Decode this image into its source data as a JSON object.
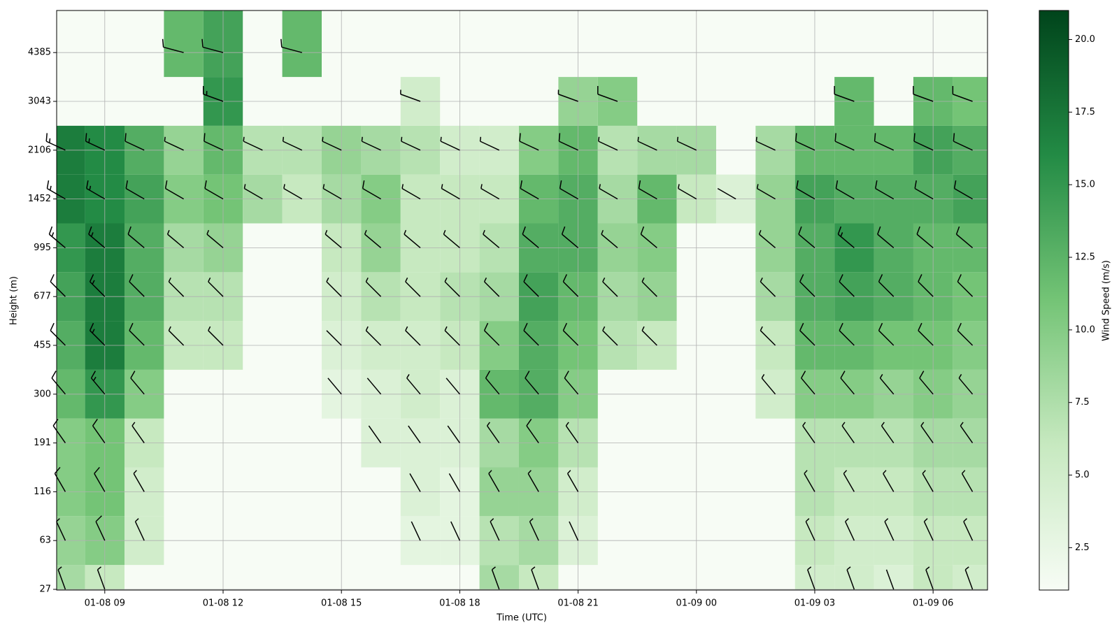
{
  "chart_data": {
    "type": "heatmap-barbs",
    "x_label": "Time (UTC)",
    "y_label": "Height (m)",
    "colorbar_label": "Wind Speed (m/s)",
    "cmap": [
      "#f7fcf5",
      "#c7e9c0",
      "#74c476",
      "#238b45",
      "#00441b"
    ],
    "barb_color": "#000000",
    "grid": true,
    "x": [
      8,
      9,
      10,
      11,
      12,
      13,
      14,
      15,
      16,
      17,
      18,
      19,
      20,
      21,
      22,
      23,
      24,
      25,
      26,
      27,
      28,
      29,
      30,
      31
    ],
    "xlim": [
      7.78,
      31.38
    ],
    "xticks": [
      {
        "value": 9,
        "label": "01-08 09"
      },
      {
        "value": 12,
        "label": "01-08 12"
      },
      {
        "value": 15,
        "label": "01-08 15"
      },
      {
        "value": 18,
        "label": "01-08 18"
      },
      {
        "value": 21,
        "label": "01-08 21"
      },
      {
        "value": 24,
        "label": "01-09 00"
      },
      {
        "value": 27,
        "label": "01-09 03"
      },
      {
        "value": 30,
        "label": "01-09 06"
      }
    ],
    "y_levels": [
      27,
      63,
      116,
      191,
      300,
      455,
      677,
      995,
      1452,
      2106,
      3043,
      4385
    ],
    "directions": [
      340,
      335,
      330,
      325,
      320,
      315,
      315,
      310,
      300,
      295,
      290,
      285
    ],
    "values": [
      [
        8,
        6,
        null,
        null,
        null,
        null,
        null,
        null,
        null,
        null,
        null,
        8,
        6,
        null,
        null,
        null,
        null,
        null,
        null,
        5,
        5,
        4,
        6,
        5
      ],
      [
        9,
        10,
        5,
        null,
        null,
        null,
        null,
        null,
        null,
        3,
        3,
        7,
        8,
        4,
        null,
        null,
        null,
        null,
        null,
        6,
        5,
        5,
        6,
        6
      ],
      [
        10,
        11,
        5,
        null,
        null,
        null,
        null,
        null,
        null,
        4,
        3,
        9,
        9,
        5,
        null,
        null,
        null,
        null,
        null,
        7,
        6,
        6,
        7,
        7
      ],
      [
        10,
        11,
        6,
        null,
        null,
        null,
        null,
        null,
        4,
        4,
        4,
        8,
        10,
        7,
        null,
        null,
        null,
        null,
        null,
        7,
        7,
        7,
        8,
        8
      ],
      [
        12,
        15,
        10,
        null,
        null,
        null,
        null,
        3,
        4,
        5,
        4,
        12,
        13,
        10,
        null,
        null,
        null,
        null,
        5,
        10,
        10,
        9,
        10,
        9
      ],
      [
        13,
        17,
        12,
        6,
        6,
        null,
        null,
        4,
        5,
        5,
        6,
        10,
        13,
        11,
        7,
        6,
        null,
        null,
        6,
        12,
        12,
        11,
        11,
        10
      ],
      [
        14,
        17,
        13,
        7,
        7,
        null,
        null,
        5,
        7,
        6,
        7,
        8,
        14,
        12,
        8,
        9,
        null,
        null,
        8,
        13,
        14,
        13,
        12,
        11
      ],
      [
        15,
        17,
        13,
        8,
        9,
        null,
        null,
        6,
        9,
        6,
        6,
        7,
        13,
        13,
        9,
        10,
        null,
        null,
        9,
        13,
        15,
        13,
        12,
        12
      ],
      [
        17,
        16,
        14,
        10,
        11,
        8,
        6,
        8,
        10,
        6,
        6,
        6,
        12,
        13,
        8,
        12,
        6,
        4,
        9,
        14,
        13,
        13,
        13,
        14
      ],
      [
        17,
        16,
        13,
        9,
        12,
        7,
        7,
        9,
        8,
        7,
        5,
        5,
        10,
        12,
        7,
        8,
        8,
        null,
        8,
        12,
        12,
        12,
        14,
        13
      ],
      [
        null,
        null,
        null,
        null,
        15,
        null,
        null,
        null,
        null,
        5,
        null,
        null,
        null,
        9,
        10,
        null,
        null,
        null,
        null,
        null,
        12,
        null,
        12,
        11
      ],
      [
        null,
        null,
        null,
        12,
        14,
        null,
        12,
        null,
        null,
        null,
        null,
        null,
        null,
        null,
        null,
        null,
        null,
        null,
        null,
        null,
        null,
        null,
        null,
        null
      ]
    ],
    "clim": [
      1.04,
      21.0
    ],
    "cticks": [
      2.5,
      {
        "value": 5,
        "label": "5.0"
      },
      7.5,
      {
        "value": 10,
        "label": "10.0"
      },
      12.5,
      {
        "value": 15,
        "label": "15.0"
      },
      17.5,
      {
        "value": 20,
        "label": "20.0"
      }
    ]
  }
}
